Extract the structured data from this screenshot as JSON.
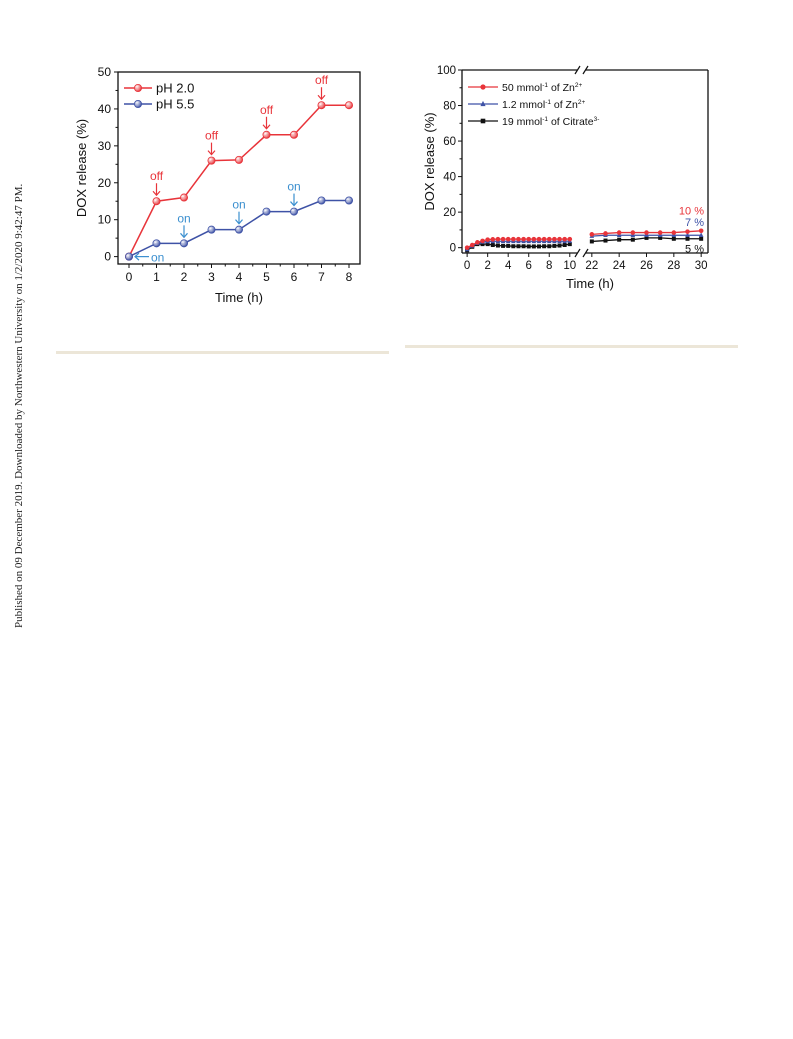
{
  "side_note": "Published on 09 December 2019. Downloaded by Northwestern University on 1/2/2020 9:42:47 PM.",
  "chart_data": [
    {
      "type": "line",
      "xlabel": "Time (h)",
      "ylabel": "DOX release (%)",
      "xlim": [
        -0.4,
        8.4
      ],
      "ylim": [
        -2,
        50
      ],
      "x_ticks": [
        0,
        1,
        2,
        3,
        4,
        5,
        6,
        7,
        8
      ],
      "y_ticks": [
        0,
        10,
        20,
        30,
        40,
        50
      ],
      "legend_position": "top-left",
      "series": [
        {
          "name": "pH 2.0",
          "color": "#e8343a",
          "x": [
            0,
            1,
            2,
            3,
            4,
            5,
            6,
            7,
            8
          ],
          "y": [
            0,
            15,
            16,
            26,
            26.2,
            33,
            33,
            41,
            41
          ]
        },
        {
          "name": "pH 5.5",
          "color": "#3e52a6",
          "x": [
            0,
            1,
            2,
            3,
            4,
            5,
            6,
            7,
            8
          ],
          "y": [
            0,
            3.6,
            3.6,
            7.3,
            7.3,
            12.2,
            12.2,
            15.2,
            15.2
          ]
        }
      ],
      "annotations": [
        {
          "text": "off",
          "x": 1,
          "y": 15,
          "color": "#e8343a"
        },
        {
          "text": "off",
          "x": 3,
          "y": 26,
          "color": "#e8343a"
        },
        {
          "text": "off",
          "x": 5,
          "y": 33,
          "color": "#e8343a"
        },
        {
          "text": "off",
          "x": 7,
          "y": 41,
          "color": "#e8343a"
        },
        {
          "text": "on",
          "x": 0,
          "y": 0,
          "color": "#3b8fcf",
          "direction": "left"
        },
        {
          "text": "on",
          "x": 2,
          "y": 3.6,
          "color": "#3b8fcf"
        },
        {
          "text": "on",
          "x": 4,
          "y": 7.3,
          "color": "#3b8fcf"
        },
        {
          "text": "on",
          "x": 6,
          "y": 12.2,
          "color": "#3b8fcf"
        }
      ]
    },
    {
      "type": "line",
      "xlabel": "Time (h)",
      "ylabel": "DOX release (%)",
      "ylim": [
        -3,
        100
      ],
      "x_segments": [
        [
          -0.5,
          10.8
        ],
        [
          21.5,
          30.5
        ]
      ],
      "x_ticks": [
        0,
        2,
        4,
        6,
        8,
        10,
        22,
        24,
        26,
        28,
        30
      ],
      "y_ticks": [
        0,
        20,
        40,
        60,
        80,
        100
      ],
      "legend_position": "top-left",
      "series": [
        {
          "name": "50 mmol",
          "sup": "-1",
          "name_mid": " of Zn",
          "sup2": "2+",
          "color": "#e8343a",
          "marker": "circle",
          "x": [
            0,
            0.5,
            1,
            1.5,
            2,
            2.5,
            3,
            3.5,
            4,
            4.5,
            5,
            5.5,
            6,
            6.5,
            7,
            7.5,
            8,
            8.5,
            9,
            9.5,
            10,
            22,
            23,
            24,
            25,
            26,
            27,
            28,
            29,
            30
          ],
          "y": [
            0,
            1.5,
            3,
            3.8,
            4.5,
            4.7,
            4.8,
            4.8,
            4.8,
            4.8,
            4.8,
            4.8,
            4.8,
            4.8,
            4.8,
            4.8,
            4.8,
            4.8,
            4.8,
            4.8,
            4.8,
            7.5,
            8,
            8.5,
            8.5,
            8.5,
            8.5,
            8.5,
            9,
            9.5
          ]
        },
        {
          "name": "1.2 mmol",
          "sup": "-1",
          "name_mid": " of Zn",
          "sup2": "2+",
          "color": "#3e52a6",
          "marker": "triangle",
          "x": [
            0,
            0.5,
            1,
            1.5,
            2,
            2.5,
            3,
            3.5,
            4,
            4.5,
            5,
            5.5,
            6,
            6.5,
            7,
            7.5,
            8,
            8.5,
            9,
            9.5,
            10,
            22,
            23,
            24,
            25,
            26,
            27,
            28,
            29,
            30
          ],
          "y": [
            -1,
            1,
            2.5,
            3.2,
            3.5,
            3.6,
            3.6,
            3.6,
            3.6,
            3.6,
            3.6,
            3.6,
            3.6,
            3.6,
            3.6,
            3.6,
            3.6,
            3.6,
            3.6,
            3.6,
            3.7,
            6.5,
            7,
            7,
            7,
            7,
            7,
            7,
            7,
            7
          ]
        },
        {
          "name": "19 mmol",
          "sup": "-1",
          "name_mid": " of Citrate",
          "sup2": "3-",
          "color": "#111111",
          "marker": "square",
          "x": [
            0,
            0.5,
            1,
            1.5,
            2,
            2.5,
            3,
            3.5,
            4,
            4.5,
            5,
            5.5,
            6,
            6.5,
            7,
            7.5,
            8,
            8.5,
            9,
            9.5,
            10,
            22,
            23,
            24,
            25,
            26,
            27,
            28,
            29,
            30
          ],
          "y": [
            -1.5,
            0.5,
            2,
            2,
            2,
            1.5,
            1.2,
            1,
            1,
            0.8,
            0.8,
            0.8,
            0.7,
            0.7,
            0.7,
            0.8,
            0.8,
            1,
            1.2,
            1.5,
            2,
            3.5,
            4,
            4.5,
            4.5,
            5.5,
            5.5,
            5,
            5,
            5
          ]
        }
      ],
      "end_labels": [
        {
          "text": "10 %",
          "color": "#e8343a"
        },
        {
          "text": "7 %",
          "color": "#3e52a6"
        },
        {
          "text": "5 %",
          "color": "#111111"
        }
      ]
    }
  ]
}
